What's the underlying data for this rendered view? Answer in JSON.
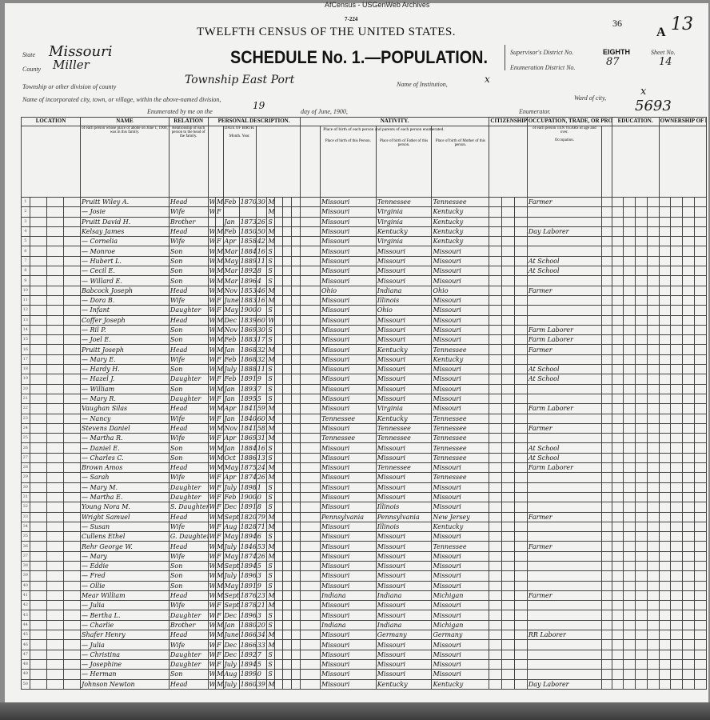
{
  "watermark": "AfCensus - USGenWeb Archives",
  "form_number": "7-224",
  "sheet_marks": {
    "stamp": "36",
    "letter": "A",
    "page": "13"
  },
  "census_title": "TWELFTH CENSUS OF THE UNITED STATES.",
  "schedule_title": "SCHEDULE No. 1.—POPULATION.",
  "fields": {
    "state": {
      "label": "State",
      "value": "Missouri"
    },
    "county": {
      "label": "County",
      "value": "Miller"
    },
    "township": {
      "label": "Township or other division of county",
      "value": "Township East Port"
    },
    "institution": {
      "label": "Name of Institution,",
      "value": "x"
    },
    "city": {
      "label": "Name of incorporated city, town, or village, within the above-named division,",
      "value": ""
    },
    "ward": {
      "label": "Ward of city,",
      "value": "x"
    },
    "enumerated_prefix": "Enumerated by me on the",
    "enumerated_day": "19",
    "enumerated_suffix": "day of June, 1900,",
    "enumerator_label": "Enumerator.",
    "supervisor_label": "Supervisor's District No.",
    "supervisor_value": "EIGHTH",
    "enumeration_label": "Enumeration District No.",
    "enumeration_value": "87",
    "sheet_label": "Sheet No.",
    "sheet_value": "14",
    "corner_number": "5693"
  },
  "column_groups": [
    "LOCATION",
    "NAME",
    "RELATION",
    "PERSONAL DESCRIPTION.",
    "NATIVITY.",
    "CITIZENSHIP.",
    "OCCUPATION, TRADE, OR PROFESSION",
    "EDUCATION.",
    "OWNERSHIP OF HOME."
  ],
  "column_headers": {
    "name": "of each person whose place of abode on June 1, 1900, was in this family.",
    "relation": "Relationship of each person to the head of the family.",
    "birth": "DATE OF BIRTH.",
    "month": "Month.",
    "year": "Year.",
    "nativity": "Place of birth of each person and parents of each person enumerated.",
    "birth_person": "Place of birth of this Person.",
    "birth_father": "Place of birth of Father of this person.",
    "birth_mother": "Place of birth of Mother of this person.",
    "occupation": "of each person TEN YEARS of age and over.",
    "occupation_sub": "Occupation."
  },
  "rows": [
    [
      "Pruitt Wiley A.",
      "Head",
      "W",
      "M",
      "Feb",
      "1870",
      "30",
      "M",
      "Missouri",
      "Tennessee",
      "Tennessee",
      "Farmer"
    ],
    [
      "— Josie",
      "Wife",
      "W",
      "F",
      "",
      "",
      "",
      "M",
      "Missouri",
      "Virginia",
      "Kentucky",
      ""
    ],
    [
      "Pruitt David H.",
      "Brother",
      "",
      "",
      "Jan",
      "1873",
      "26",
      "S",
      "Missouri",
      "Virginia",
      "Kentucky",
      ""
    ],
    [
      "Kelsay James",
      "Head",
      "W",
      "M",
      "Feb",
      "1850",
      "50",
      "M",
      "Missouri",
      "Kentucky",
      "Kentucky",
      "Day Laborer"
    ],
    [
      "— Cornelia",
      "Wife",
      "W",
      "F",
      "Apr",
      "1858",
      "42",
      "M",
      "Missouri",
      "Virginia",
      "Kentucky",
      ""
    ],
    [
      "— Monroe",
      "Son",
      "W",
      "M",
      "Mar",
      "1884",
      "16",
      "S",
      "Missouri",
      "Missouri",
      "Missouri",
      ""
    ],
    [
      "— Hubert L.",
      "Son",
      "W",
      "M",
      "May",
      "1889",
      "11",
      "S",
      "Missouri",
      "Missouri",
      "Missouri",
      "At School"
    ],
    [
      "— Cecil E.",
      "Son",
      "W",
      "M",
      "Mar",
      "1892",
      "8",
      "S",
      "Missouri",
      "Missouri",
      "Missouri",
      "At School"
    ],
    [
      "— Willard E.",
      "Son",
      "W",
      "M",
      "Mar",
      "1896",
      "4",
      "S",
      "Missouri",
      "Missouri",
      "Missouri",
      ""
    ],
    [
      "Babcock Joseph",
      "Head",
      "W",
      "M",
      "Nov",
      "1853",
      "46",
      "M",
      "Ohio",
      "Indiana",
      "Ohio",
      "Farmer"
    ],
    [
      "— Dora B.",
      "Wife",
      "W",
      "F",
      "June",
      "1883",
      "16",
      "M",
      "Missouri",
      "Illinois",
      "Missouri",
      ""
    ],
    [
      "— Infant",
      "Daughter",
      "W",
      "F",
      "May",
      "1900",
      "0",
      "S",
      "Missouri",
      "Ohio",
      "Missouri",
      ""
    ],
    [
      "Coffer Joseph",
      "Head",
      "W",
      "M",
      "Dec",
      "1839",
      "60",
      "Wd",
      "Missouri",
      "Missouri",
      "Missouri",
      ""
    ],
    [
      "— Ril P.",
      "Son",
      "W",
      "M",
      "Nov",
      "1869",
      "30",
      "S",
      "Missouri",
      "Missouri",
      "Missouri",
      "Farm Laborer"
    ],
    [
      "— Joel E.",
      "Son",
      "W",
      "M",
      "Feb",
      "1883",
      "17",
      "S",
      "Missouri",
      "Missouri",
      "Missouri",
      "Farm Laborer"
    ],
    [
      "Pruitt Joseph",
      "Head",
      "W",
      "M",
      "Jan",
      "1868",
      "32",
      "M",
      "Missouri",
      "Kentucky",
      "Tennessee",
      "Farmer"
    ],
    [
      "— Mary E.",
      "Wife",
      "W",
      "F",
      "Feb",
      "1868",
      "32",
      "M",
      "Missouri",
      "Missouri",
      "Kentucky",
      ""
    ],
    [
      "— Hardy H.",
      "Son",
      "W",
      "M",
      "July",
      "1888",
      "11",
      "S",
      "Missouri",
      "Missouri",
      "Missouri",
      "At School"
    ],
    [
      "— Hazel J.",
      "Daughter",
      "W",
      "F",
      "Feb",
      "1891",
      "9",
      "S",
      "Missouri",
      "Missouri",
      "Missouri",
      "At School"
    ],
    [
      "— William",
      "Son",
      "W",
      "M",
      "Jan",
      "1893",
      "7",
      "S",
      "Missouri",
      "Missouri",
      "Missouri",
      ""
    ],
    [
      "— Mary R.",
      "Daughter",
      "W",
      "F",
      "Jan",
      "1895",
      "5",
      "S",
      "Missouri",
      "Missouri",
      "Missouri",
      ""
    ],
    [
      "Vaughan Silas",
      "Head",
      "W",
      "M",
      "Apr",
      "1841",
      "59",
      "M",
      "Missouri",
      "Virginia",
      "Missouri",
      "Farm Laborer"
    ],
    [
      "— Nancy",
      "Wife",
      "W",
      "F",
      "Jan",
      "1840",
      "60",
      "M",
      "Tennessee",
      "Kentucky",
      "Tennessee",
      ""
    ],
    [
      "Stevens Daniel",
      "Head",
      "W",
      "M",
      "Nov",
      "1841",
      "58",
      "M",
      "Missouri",
      "Tennessee",
      "Tennessee",
      "Farmer"
    ],
    [
      "— Martha R.",
      "Wife",
      "W",
      "F",
      "Apr",
      "1869",
      "31",
      "M",
      "Tennessee",
      "Tennessee",
      "Tennessee",
      ""
    ],
    [
      "— Daniel E.",
      "Son",
      "W",
      "M",
      "Jan",
      "1884",
      "16",
      "S",
      "Missouri",
      "Missouri",
      "Tennessee",
      "At School"
    ],
    [
      "— Charles C.",
      "Son",
      "W",
      "M",
      "Oct",
      "1886",
      "13",
      "S",
      "Missouri",
      "Missouri",
      "Tennessee",
      "At School"
    ],
    [
      "Brown Amos",
      "Head",
      "W",
      "M",
      "May",
      "1875",
      "24",
      "M",
      "Missouri",
      "Tennessee",
      "Missouri",
      "Farm Laborer"
    ],
    [
      "— Sarah",
      "Wife",
      "W",
      "F",
      "Apr",
      "1874",
      "26",
      "M",
      "Missouri",
      "Missouri",
      "Tennessee",
      ""
    ],
    [
      "— Mary M.",
      "Daughter",
      "W",
      "F",
      "July",
      "1898",
      "1",
      "S",
      "Missouri",
      "Missouri",
      "Missouri",
      ""
    ],
    [
      "— Martha E.",
      "Daughter",
      "W",
      "F",
      "Feb",
      "1900",
      "0",
      "S",
      "Missouri",
      "Missouri",
      "Missouri",
      ""
    ],
    [
      "Young Nora M.",
      "S. Daughter",
      "W",
      "F",
      "Dec",
      "1891",
      "8",
      "S",
      "Missouri",
      "Illinois",
      "Missouri",
      ""
    ],
    [
      "Wright Samuel",
      "Head",
      "W",
      "M",
      "Sept",
      "1820",
      "79",
      "M",
      "Pennsylvania",
      "Pennsylvania",
      "New Jersey",
      "Farmer"
    ],
    [
      "— Susan",
      "Wife",
      "W",
      "F",
      "Aug",
      "1828",
      "71",
      "M",
      "Missouri",
      "Illinois",
      "Kentucky",
      ""
    ],
    [
      "Cullens Ethel",
      "G. Daughter",
      "W",
      "F",
      "May",
      "1894",
      "6",
      "S",
      "Missouri",
      "Missouri",
      "Missouri",
      ""
    ],
    [
      "Rehr George W.",
      "Head",
      "W",
      "M",
      "July",
      "1846",
      "53",
      "M",
      "Missouri",
      "Missouri",
      "Tennessee",
      "Farmer"
    ],
    [
      "— Mary",
      "Wife",
      "W",
      "F",
      "May",
      "1874",
      "26",
      "M",
      "Missouri",
      "Missouri",
      "Missouri",
      ""
    ],
    [
      "— Eddie",
      "Son",
      "W",
      "M",
      "Sept",
      "1894",
      "5",
      "S",
      "Missouri",
      "Missouri",
      "Missouri",
      ""
    ],
    [
      "— Fred",
      "Son",
      "W",
      "M",
      "July",
      "1896",
      "3",
      "S",
      "Missouri",
      "Missouri",
      "Missouri",
      ""
    ],
    [
      "— Ollie",
      "Son",
      "W",
      "M",
      "May",
      "1891",
      "9",
      "S",
      "Missouri",
      "Missouri",
      "Missouri",
      ""
    ],
    [
      "Mear William",
      "Head",
      "W",
      "M",
      "Sept",
      "1876",
      "23",
      "M",
      "Indiana",
      "Indiana",
      "Michigan",
      "Farmer"
    ],
    [
      "— Julia",
      "Wife",
      "W",
      "F",
      "Sept",
      "1878",
      "21",
      "M",
      "Missouri",
      "Missouri",
      "Missouri",
      ""
    ],
    [
      "— Bertha L.",
      "Daughter",
      "W",
      "F",
      "Dec",
      "1896",
      "3",
      "S",
      "Missouri",
      "Missouri",
      "Missouri",
      ""
    ],
    [
      "— Charlie",
      "Brother",
      "W",
      "M",
      "Jan",
      "1880",
      "20",
      "S",
      "Indiana",
      "Indiana",
      "Michigan",
      ""
    ],
    [
      "Shafer Henry",
      "Head",
      "W",
      "M",
      "June",
      "1866",
      "34",
      "M",
      "Missouri",
      "Germany",
      "Germany",
      "RR Laborer"
    ],
    [
      "— Julia",
      "Wife",
      "W",
      "F",
      "Dec",
      "1866",
      "33",
      "M",
      "Missouri",
      "Missouri",
      "Missouri",
      ""
    ],
    [
      "— Christina",
      "Daughter",
      "W",
      "F",
      "Dec",
      "1892",
      "7",
      "S",
      "Missouri",
      "Missouri",
      "Missouri",
      ""
    ],
    [
      "— Josephine",
      "Daughter",
      "W",
      "F",
      "July",
      "1894",
      "5",
      "S",
      "Missouri",
      "Missouri",
      "Missouri",
      ""
    ],
    [
      "— Herman",
      "Son",
      "W",
      "M",
      "Aug",
      "1899",
      "0",
      "S",
      "Missouri",
      "Missouri",
      "Missouri",
      ""
    ],
    [
      "Johnson Newton",
      "Head",
      "W",
      "M",
      "July",
      "1860",
      "39",
      "M",
      "Missouri",
      "Kentucky",
      "Kentucky",
      "Day Laborer"
    ]
  ]
}
